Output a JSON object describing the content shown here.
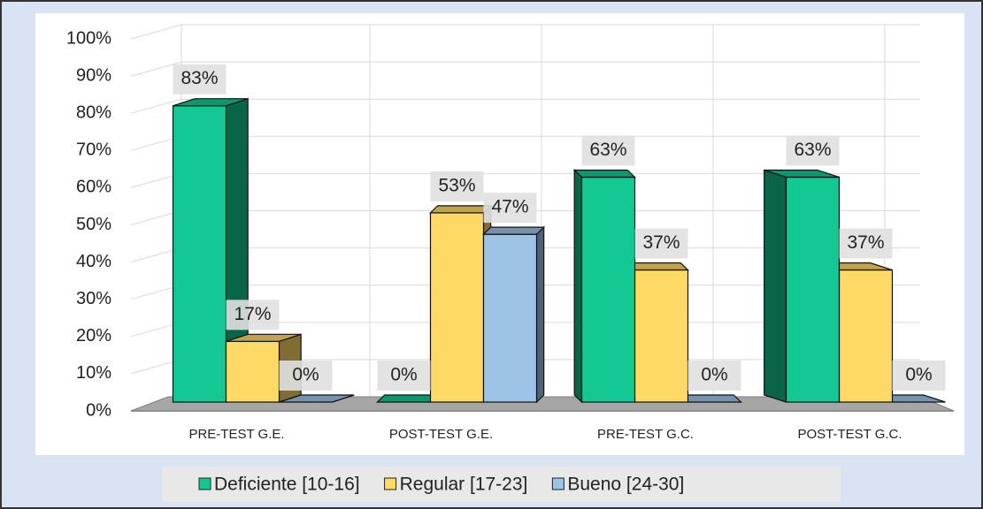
{
  "chart_data": {
    "type": "bar",
    "categories": [
      "PRE-TEST G.E.",
      "POST-TEST G.E.",
      "PRE-TEST G.C.",
      "POST-TEST G.C."
    ],
    "series": [
      {
        "name": "Deficiente [10-16]",
        "color": "#13c892",
        "values": [
          83,
          0,
          63,
          63
        ],
        "value_labels": [
          "83%",
          "0%",
          "63%",
          "63%"
        ]
      },
      {
        "name": "Regular [17-23]",
        "color": "#ffd966",
        "values": [
          17,
          53,
          37,
          37
        ],
        "value_labels": [
          "17%",
          "53%",
          "37%",
          "37%"
        ]
      },
      {
        "name": "Bueno [24-30]",
        "color": "#9dc3e6",
        "values": [
          0,
          47,
          0,
          0
        ],
        "value_labels": [
          "0%",
          "47%",
          "0%",
          "0%"
        ]
      }
    ],
    "ylim": [
      0,
      100
    ],
    "yticks": [
      {
        "value": 0,
        "label": "0%"
      },
      {
        "value": 10,
        "label": "10%"
      },
      {
        "value": 20,
        "label": "20%"
      },
      {
        "value": 30,
        "label": "30%"
      },
      {
        "value": 40,
        "label": "40%"
      },
      {
        "value": 50,
        "label": "50%"
      },
      {
        "value": 60,
        "label": "60%"
      },
      {
        "value": 70,
        "label": "70%"
      },
      {
        "value": 80,
        "label": "80%"
      },
      {
        "value": 90,
        "label": "90%"
      },
      {
        "value": 100,
        "label": "100%"
      }
    ],
    "grid": true,
    "legend": "bottom"
  }
}
